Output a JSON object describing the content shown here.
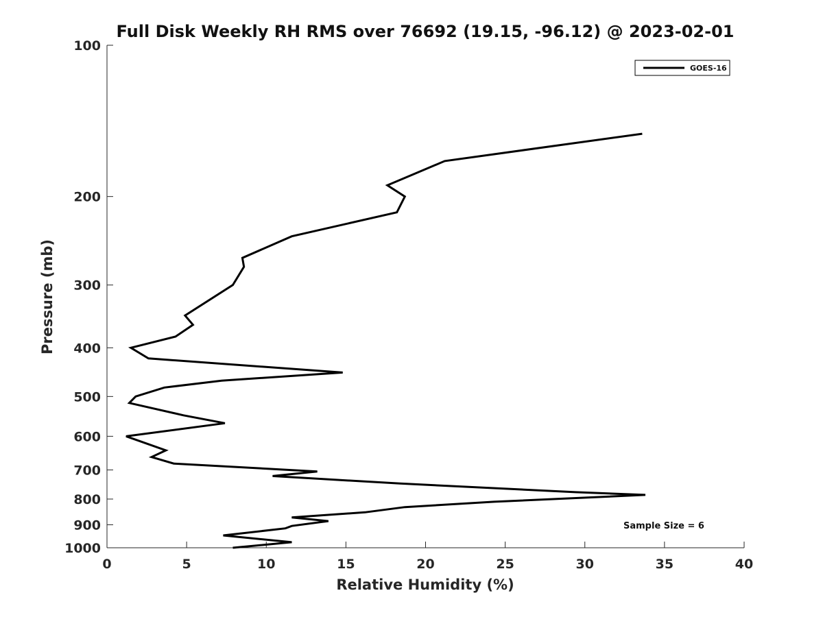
{
  "chart_data": {
    "type": "line",
    "title": "Full Disk Weekly RH RMS over 76692 (19.15, -96.12) @ 2023-02-01",
    "xlabel": "Relative Humidity (%)",
    "ylabel": "Pressure (mb)",
    "xlim": [
      0,
      40
    ],
    "ylim": [
      100,
      1000
    ],
    "y_scale": "log",
    "y_reversed": true,
    "grid": false,
    "legend_position": "top-right",
    "x_ticks": [
      0,
      5,
      10,
      15,
      20,
      25,
      30,
      35,
      40
    ],
    "y_ticks": [
      100,
      200,
      300,
      400,
      500,
      600,
      700,
      800,
      900,
      1000
    ],
    "annotation": "Sample Size = 6",
    "series": [
      {
        "name": "GOES-16",
        "color": "#000000",
        "points": [
          [
            33.6,
            150
          ],
          [
            21.2,
            170
          ],
          [
            17.6,
            190
          ],
          [
            18.7,
            200
          ],
          [
            18.2,
            215
          ],
          [
            11.6,
            240
          ],
          [
            8.5,
            265
          ],
          [
            8.6,
            276
          ],
          [
            7.9,
            300
          ],
          [
            4.9,
            345
          ],
          [
            5.4,
            360
          ],
          [
            4.3,
            380
          ],
          [
            1.5,
            400
          ],
          [
            2.6,
            420
          ],
          [
            14.8,
            448
          ],
          [
            7.2,
            465
          ],
          [
            3.6,
            480
          ],
          [
            1.8,
            500
          ],
          [
            1.4,
            515
          ],
          [
            4.8,
            545
          ],
          [
            7.4,
            565
          ],
          [
            1.2,
            600
          ],
          [
            3.7,
            640
          ],
          [
            2.8,
            660
          ],
          [
            4.2,
            680
          ],
          [
            13.2,
            705
          ],
          [
            10.4,
            720
          ],
          [
            18.4,
            745
          ],
          [
            29.4,
            775
          ],
          [
            33.8,
            785
          ],
          [
            24.3,
            810
          ],
          [
            18.7,
            830
          ],
          [
            16.2,
            850
          ],
          [
            11.6,
            870
          ],
          [
            13.9,
            885
          ],
          [
            11.6,
            905
          ],
          [
            11.2,
            915
          ],
          [
            7.3,
            945
          ],
          [
            11.6,
            975
          ],
          [
            7.9,
            1000
          ]
        ]
      }
    ]
  }
}
